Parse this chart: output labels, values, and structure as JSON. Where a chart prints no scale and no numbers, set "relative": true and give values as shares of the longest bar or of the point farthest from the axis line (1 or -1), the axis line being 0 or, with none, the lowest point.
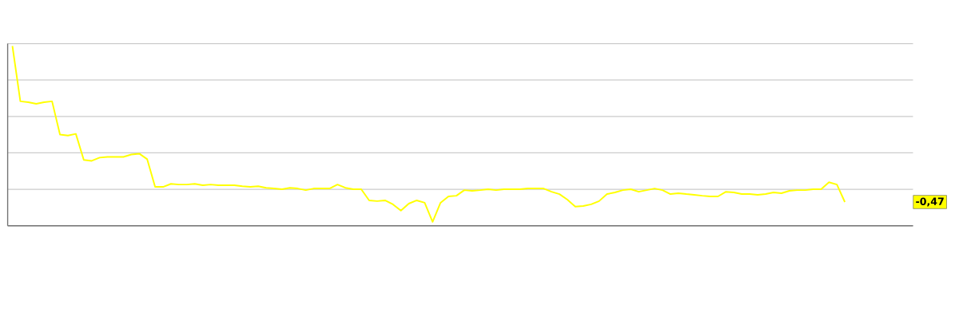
{
  "chart_data": {
    "type": "line",
    "relative": true,
    "grid": true,
    "color": "#ffff00",
    "categories": [
      null,
      null,
      null,
      null,
      null,
      null,
      null,
      null,
      null,
      null,
      null,
      null,
      null,
      null,
      null,
      null,
      null,
      null,
      null,
      null,
      null,
      null,
      null,
      null,
      null,
      null,
      null,
      null,
      null,
      null,
      null,
      null,
      null,
      null,
      null,
      null,
      null,
      null,
      null,
      null,
      null,
      null,
      null,
      null,
      null,
      null,
      null,
      null,
      null,
      null,
      null,
      null,
      null,
      null,
      null,
      null,
      null,
      null,
      null,
      null,
      null,
      null,
      null,
      null,
      null,
      null,
      null,
      null,
      null,
      null,
      null,
      null,
      null,
      null,
      null,
      null,
      null,
      null,
      null,
      null,
      null,
      null,
      null,
      null,
      null,
      null,
      null,
      null,
      null,
      null,
      null,
      null,
      null,
      null,
      null,
      null,
      null,
      null,
      null,
      null,
      null,
      null,
      null,
      null,
      null,
      null
    ],
    "values": [
      1.0,
      0.692,
      0.687,
      0.678,
      0.687,
      0.692,
      0.507,
      0.502,
      0.511,
      0.366,
      0.361,
      0.379,
      0.383,
      0.383,
      0.383,
      0.396,
      0.401,
      0.37,
      0.216,
      0.216,
      0.233,
      0.229,
      0.229,
      0.233,
      0.225,
      0.229,
      0.225,
      0.225,
      0.225,
      0.22,
      0.216,
      0.22,
      0.211,
      0.207,
      0.203,
      0.211,
      0.207,
      0.198,
      0.207,
      0.207,
      0.207,
      0.229,
      0.211,
      0.203,
      0.203,
      0.141,
      0.137,
      0.141,
      0.119,
      0.084,
      0.123,
      0.141,
      0.128,
      0.022,
      0.128,
      0.163,
      0.167,
      0.198,
      0.194,
      0.198,
      0.203,
      0.198,
      0.203,
      0.203,
      0.203,
      0.207,
      0.207,
      0.207,
      0.189,
      0.176,
      0.145,
      0.106,
      0.11,
      0.119,
      0.137,
      0.176,
      0.185,
      0.198,
      0.203,
      0.189,
      0.198,
      0.207,
      0.198,
      0.176,
      0.181,
      0.176,
      0.172,
      0.167,
      0.163,
      0.163,
      0.189,
      0.185,
      0.176,
      0.176,
      0.172,
      0.176,
      0.185,
      0.181,
      0.194,
      0.198,
      0.198,
      0.203,
      0.203,
      0.242,
      0.229,
      0.132
    ],
    "annotations": [
      "-0,47"
    ]
  }
}
